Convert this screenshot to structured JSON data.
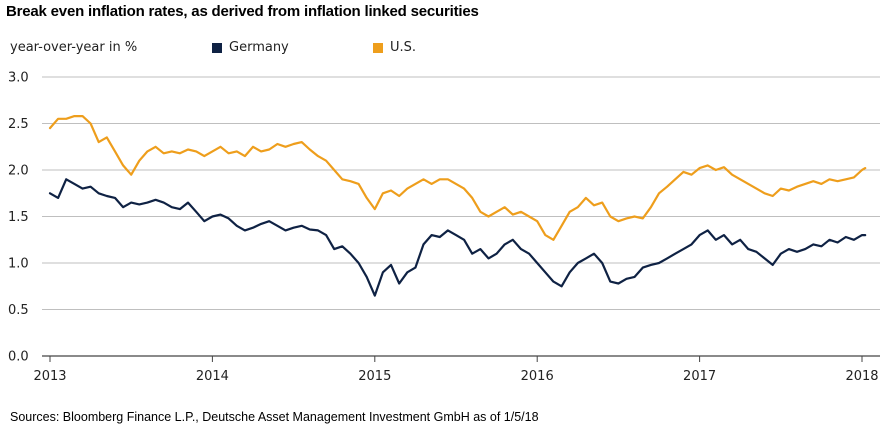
{
  "title": "Break even inflation rates, as derived from inflation linked securities",
  "source": "Sources: Bloomberg Finance L.P., Deutsche Asset Management Investment GmbH as of 1/5/18",
  "colors": {
    "germany": "#0f2244",
    "us": "#ee9e1c",
    "grid": "#bfbfbf",
    "axis": "#444444"
  },
  "chart_data": {
    "type": "line",
    "title": "Break even inflation rates, as derived from inflation linked securities",
    "ylabel": "year-over-year in %",
    "xlabel": "",
    "ylim": [
      0,
      3
    ],
    "xlim": [
      2013.0,
      2018.05
    ],
    "yticks": [
      "0.0",
      "0.5",
      "1.0",
      "1.5",
      "2.0",
      "2.5",
      "3.0"
    ],
    "xticks": [
      "2013",
      "2014",
      "2015",
      "2016",
      "2017",
      "2018"
    ],
    "grid": true,
    "legend": "top",
    "series": [
      {
        "name": "Germany",
        "color": "#0f2244",
        "x": [
          2013.0,
          2013.05,
          2013.1,
          2013.15,
          2013.2,
          2013.25,
          2013.3,
          2013.35,
          2013.4,
          2013.45,
          2013.5,
          2013.55,
          2013.6,
          2013.65,
          2013.7,
          2013.75,
          2013.8,
          2013.85,
          2013.9,
          2013.95,
          2014.0,
          2014.05,
          2014.1,
          2014.15,
          2014.2,
          2014.25,
          2014.3,
          2014.35,
          2014.4,
          2014.45,
          2014.5,
          2014.55,
          2014.6,
          2014.65,
          2014.7,
          2014.75,
          2014.8,
          2014.85,
          2014.9,
          2014.95,
          2015.0,
          2015.05,
          2015.1,
          2015.15,
          2015.2,
          2015.25,
          2015.3,
          2015.35,
          2015.4,
          2015.45,
          2015.5,
          2015.55,
          2015.6,
          2015.65,
          2015.7,
          2015.75,
          2015.8,
          2015.85,
          2015.9,
          2015.95,
          2016.0,
          2016.05,
          2016.1,
          2016.15,
          2016.2,
          2016.25,
          2016.3,
          2016.35,
          2016.4,
          2016.45,
          2016.5,
          2016.55,
          2016.6,
          2016.65,
          2016.7,
          2016.75,
          2016.8,
          2016.85,
          2016.9,
          2016.95,
          2017.0,
          2017.05,
          2017.1,
          2017.15,
          2017.2,
          2017.25,
          2017.3,
          2017.35,
          2017.4,
          2017.45,
          2017.5,
          2017.55,
          2017.6,
          2017.65,
          2017.7,
          2017.75,
          2017.8,
          2017.85,
          2017.9,
          2017.95,
          2018.0,
          2018.02
        ],
        "values": [
          1.75,
          1.7,
          1.9,
          1.85,
          1.8,
          1.82,
          1.75,
          1.72,
          1.7,
          1.6,
          1.65,
          1.63,
          1.65,
          1.68,
          1.65,
          1.6,
          1.58,
          1.65,
          1.55,
          1.45,
          1.5,
          1.52,
          1.48,
          1.4,
          1.35,
          1.38,
          1.42,
          1.45,
          1.4,
          1.35,
          1.38,
          1.4,
          1.36,
          1.35,
          1.3,
          1.15,
          1.18,
          1.1,
          1.0,
          0.85,
          0.65,
          0.9,
          0.98,
          0.78,
          0.9,
          0.95,
          1.2,
          1.3,
          1.28,
          1.35,
          1.3,
          1.25,
          1.1,
          1.15,
          1.05,
          1.1,
          1.2,
          1.25,
          1.15,
          1.1,
          1.0,
          0.9,
          0.8,
          0.75,
          0.9,
          1.0,
          1.05,
          1.1,
          1.0,
          0.8,
          0.78,
          0.83,
          0.85,
          0.95,
          0.98,
          1.0,
          1.05,
          1.1,
          1.15,
          1.2,
          1.3,
          1.35,
          1.25,
          1.3,
          1.2,
          1.25,
          1.15,
          1.12,
          1.05,
          0.98,
          1.1,
          1.15,
          1.12,
          1.15,
          1.2,
          1.18,
          1.25,
          1.22,
          1.28,
          1.25,
          1.3,
          1.3
        ]
      },
      {
        "name": "U.S.",
        "color": "#ee9e1c",
        "x": [
          2013.0,
          2013.05,
          2013.1,
          2013.15,
          2013.2,
          2013.25,
          2013.3,
          2013.35,
          2013.4,
          2013.45,
          2013.5,
          2013.55,
          2013.6,
          2013.65,
          2013.7,
          2013.75,
          2013.8,
          2013.85,
          2013.9,
          2013.95,
          2014.0,
          2014.05,
          2014.1,
          2014.15,
          2014.2,
          2014.25,
          2014.3,
          2014.35,
          2014.4,
          2014.45,
          2014.5,
          2014.55,
          2014.6,
          2014.65,
          2014.7,
          2014.75,
          2014.8,
          2014.85,
          2014.9,
          2014.95,
          2015.0,
          2015.05,
          2015.1,
          2015.15,
          2015.2,
          2015.25,
          2015.3,
          2015.35,
          2015.4,
          2015.45,
          2015.5,
          2015.55,
          2015.6,
          2015.65,
          2015.7,
          2015.75,
          2015.8,
          2015.85,
          2015.9,
          2015.95,
          2016.0,
          2016.05,
          2016.1,
          2016.15,
          2016.2,
          2016.25,
          2016.3,
          2016.35,
          2016.4,
          2016.45,
          2016.5,
          2016.55,
          2016.6,
          2016.65,
          2016.7,
          2016.75,
          2016.8,
          2016.85,
          2016.9,
          2016.95,
          2017.0,
          2017.05,
          2017.1,
          2017.15,
          2017.2,
          2017.25,
          2017.3,
          2017.35,
          2017.4,
          2017.45,
          2017.5,
          2017.55,
          2017.6,
          2017.65,
          2017.7,
          2017.75,
          2017.8,
          2017.85,
          2017.9,
          2017.95,
          2018.0,
          2018.02
        ],
        "values": [
          2.45,
          2.55,
          2.55,
          2.58,
          2.58,
          2.5,
          2.3,
          2.35,
          2.2,
          2.05,
          1.95,
          2.1,
          2.2,
          2.25,
          2.18,
          2.2,
          2.18,
          2.22,
          2.2,
          2.15,
          2.2,
          2.25,
          2.18,
          2.2,
          2.15,
          2.25,
          2.2,
          2.22,
          2.28,
          2.25,
          2.28,
          2.3,
          2.22,
          2.15,
          2.1,
          2.0,
          1.9,
          1.88,
          1.85,
          1.7,
          1.58,
          1.75,
          1.78,
          1.72,
          1.8,
          1.85,
          1.9,
          1.85,
          1.9,
          1.9,
          1.85,
          1.8,
          1.7,
          1.55,
          1.5,
          1.55,
          1.6,
          1.52,
          1.55,
          1.5,
          1.45,
          1.3,
          1.25,
          1.4,
          1.55,
          1.6,
          1.7,
          1.62,
          1.65,
          1.5,
          1.45,
          1.48,
          1.5,
          1.48,
          1.6,
          1.75,
          1.82,
          1.9,
          1.98,
          1.95,
          2.02,
          2.05,
          2.0,
          2.03,
          1.95,
          1.9,
          1.85,
          1.8,
          1.75,
          1.72,
          1.8,
          1.78,
          1.82,
          1.85,
          1.88,
          1.85,
          1.9,
          1.88,
          1.9,
          1.92,
          2.0,
          2.02
        ]
      }
    ]
  }
}
